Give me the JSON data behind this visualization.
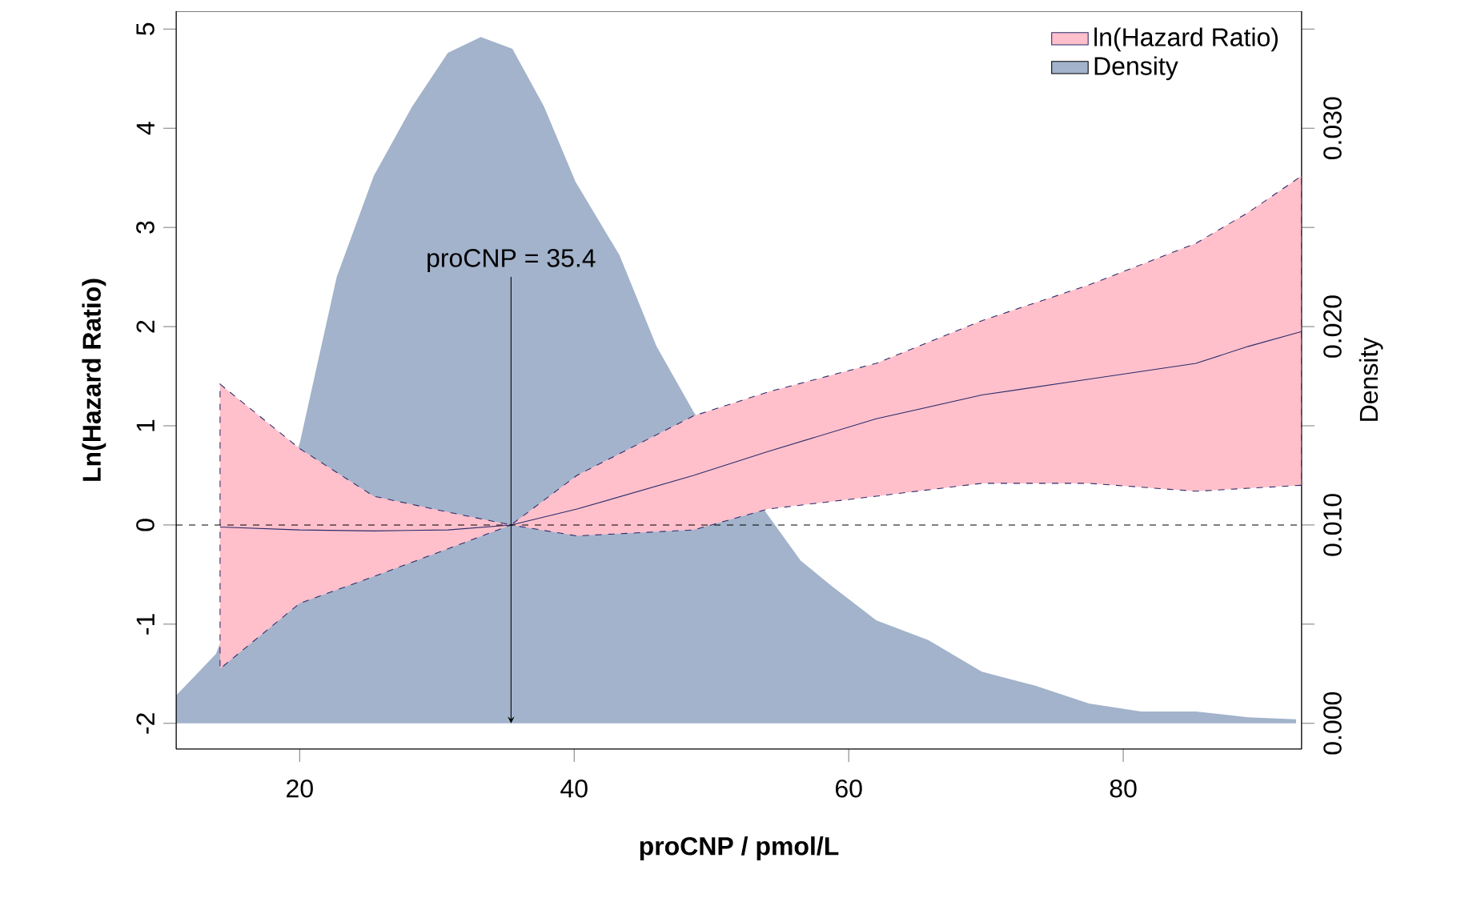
{
  "chart_data": {
    "type": "line",
    "xlabel": "proCNP / pmol/L",
    "ylabel": "Ln(Hazard Ratio)",
    "y2label": "Density",
    "xlim": [
      11,
      93
    ],
    "xticks": [
      20,
      40,
      60,
      80
    ],
    "ylim": [
      -2.26,
      5.18
    ],
    "yticks": [
      -2,
      -1,
      0,
      1,
      2,
      3,
      4,
      5
    ],
    "y2lim": [
      -0.0013,
      0.0359
    ],
    "y2ticks": [
      {
        "value": 0,
        "label": "0.000"
      },
      {
        "value": 0.005,
        "label": null
      },
      {
        "value": 0.01,
        "label": "0.010"
      },
      {
        "value": 0.015,
        "label": null
      },
      {
        "value": 0.02,
        "label": "0.020"
      },
      {
        "value": 0.025,
        "label": null
      },
      {
        "value": 0.03,
        "label": "0.030"
      },
      {
        "value": 0.035,
        "label": null
      }
    ],
    "legend": "top right",
    "marker": "none",
    "ref_lines": [
      {
        "axis": "y",
        "value": 0,
        "line_style": "dashed"
      },
      {
        "axis": "x",
        "value": 35.4,
        "label": "proCNP = 35.4"
      }
    ],
    "series": [
      {
        "name": "ln(Hazard Ratio)",
        "color": "#2b2b6b",
        "x": [
          14.2,
          20,
          25.4,
          30.8,
          35.4,
          40.2,
          48.7,
          54.1,
          62,
          69.7,
          77.5,
          85.3,
          89.1,
          93
        ],
        "values": [
          -0.02,
          -0.05,
          -0.06,
          -0.05,
          0,
          0.16,
          0.5,
          0.74,
          1.07,
          1.31,
          1.47,
          1.63,
          1.8,
          1.95
        ],
        "lower": [
          -1.45,
          -0.79,
          -0.52,
          -0.24,
          0,
          -0.11,
          -0.05,
          0.16,
          0.29,
          0.42,
          0.42,
          0.34,
          0.37,
          0.4
        ],
        "upper": [
          1.42,
          0.77,
          0.29,
          0.13,
          0,
          0.5,
          1.1,
          1.34,
          1.63,
          2.06,
          2.42,
          2.84,
          3.15,
          3.52
        ]
      },
      {
        "name": "Density",
        "type": "area",
        "axis": "y2",
        "color": "#a2b3cb",
        "x": [
          11,
          13.9,
          16.9,
          20,
          22.7,
          25.4,
          28.2,
          30.8,
          33.2,
          35.5,
          37.8,
          40.1,
          43.3,
          46,
          48.7,
          52.6,
          56.5,
          58.8,
          62,
          65.8,
          69.7,
          73.6,
          77.5,
          81.3,
          85.3,
          89.1,
          92.6
        ],
        "values": [
          0.0014,
          0.0035,
          null,
          0.0141,
          0.0225,
          0.0276,
          0.0311,
          0.0338,
          0.0346,
          0.034,
          0.0311,
          0.0273,
          0.0236,
          0.019,
          0.0157,
          null,
          0.0082,
          0.0069,
          0.0052,
          0.0042,
          0.0026,
          0.0019,
          0.001,
          0.0006,
          0.0006,
          0.0003,
          0.0002
        ]
      }
    ]
  }
}
